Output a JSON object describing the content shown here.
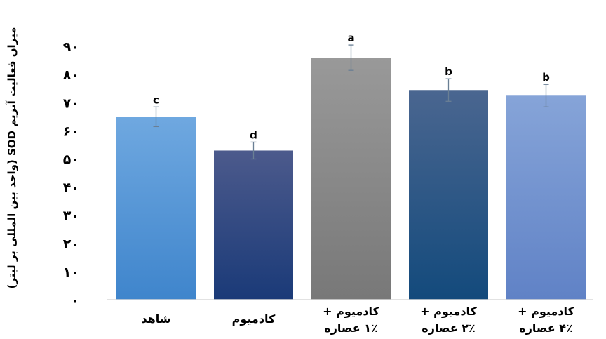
{
  "chart_data": {
    "type": "bar",
    "title": "",
    "ylabel": "میزان فعالیت آنزیم SOD (واحد بین المللی بر لیتر)",
    "xlabel": "",
    "ylim": [
      0,
      90
    ],
    "grid": false,
    "y_tick_labels": [
      "۰",
      "۱۰",
      "۲۰",
      "۳۰",
      "۴۰",
      "۵۰",
      "۶۰",
      "۷۰",
      "۸۰",
      "۹۰"
    ],
    "categories": [
      [
        "شاهد"
      ],
      [
        "کادمیوم"
      ],
      [
        "کادمیوم +",
        "۱٪ عصاره"
      ],
      [
        "کادمیوم +",
        "۲٪ عصاره"
      ],
      [
        "کادمیوم +",
        "۴٪ عصاره"
      ]
    ],
    "values": [
      65,
      53,
      86,
      74.5,
      72.5
    ],
    "errors": [
      3.5,
      3,
      4.5,
      4,
      4
    ],
    "significance": [
      "c",
      "d",
      "a",
      "b",
      "b"
    ],
    "colors": [
      [
        "#6fa8e0",
        "#3f85cc"
      ],
      [
        "#4c5a8c",
        "#1a3a78"
      ],
      [
        "#999999",
        "#787878"
      ],
      [
        "#4a6690",
        "#134a7c"
      ],
      [
        "#86a4d8",
        "#6082c6"
      ]
    ]
  }
}
